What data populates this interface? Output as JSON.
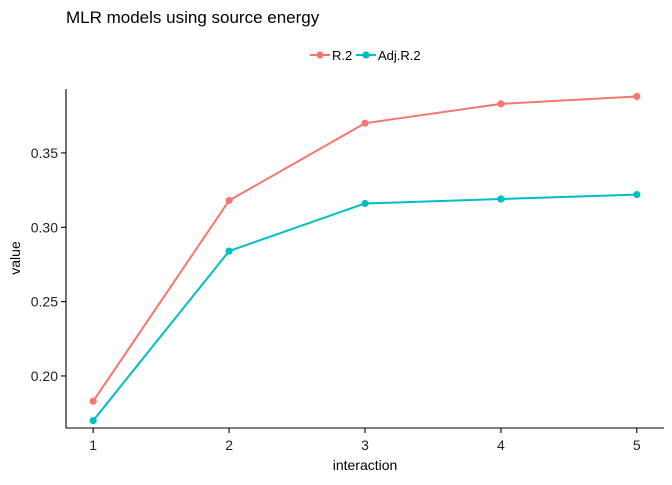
{
  "chart_data": {
    "type": "line",
    "title": "MLR models using source energy",
    "xlabel": "interaction",
    "ylabel": "value",
    "x": [
      1,
      2,
      3,
      4,
      5
    ],
    "xticks": [
      "1",
      "2",
      "3",
      "4",
      "5"
    ],
    "yticks": [
      "0.20",
      "0.25",
      "0.30",
      "0.35"
    ],
    "ylim": [
      0.165,
      0.393
    ],
    "xlim": [
      0.8,
      5.2
    ],
    "grid": false,
    "legend_position": "top",
    "series": [
      {
        "name": "R.2",
        "color": "#F8766D",
        "values": [
          0.183,
          0.318,
          0.37,
          0.383,
          0.388
        ]
      },
      {
        "name": "Adj.R.2",
        "color": "#00BFC4",
        "values": [
          0.17,
          0.284,
          0.316,
          0.319,
          0.322
        ]
      }
    ]
  }
}
